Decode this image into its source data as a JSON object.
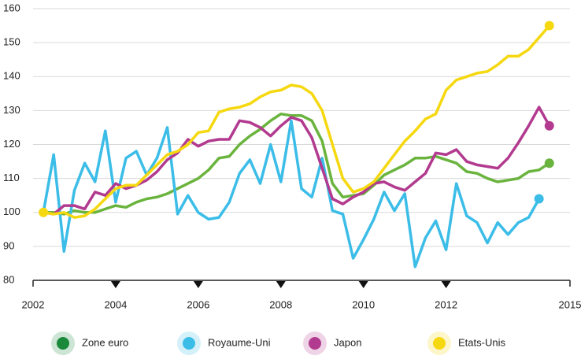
{
  "chart_data": {
    "type": "line",
    "x": [
      2002.25,
      2002.5,
      2002.75,
      2003,
      2003.25,
      2003.5,
      2003.75,
      2004,
      2004.25,
      2004.5,
      2004.75,
      2005,
      2005.25,
      2005.5,
      2005.75,
      2006,
      2006.25,
      2006.5,
      2006.75,
      2007,
      2007.25,
      2007.5,
      2007.75,
      2008,
      2008.25,
      2008.5,
      2008.75,
      2009,
      2009.25,
      2009.5,
      2009.75,
      2010,
      2010.25,
      2010.5,
      2010.75,
      2011,
      2011.25,
      2011.5,
      2011.75,
      2012,
      2012.25,
      2012.5,
      2012.75,
      2013,
      2013.25,
      2013.5,
      2013.75,
      2014,
      2014.25,
      2014.5
    ],
    "series": [
      {
        "name": "Zone euro",
        "color": "#6ab43e",
        "legend_color": "#1a8a3a",
        "values": [
          100,
          100,
          99.5,
          100.5,
          100,
          100,
          101,
          102,
          101.5,
          103,
          104,
          104.5,
          105.5,
          107,
          108.5,
          110,
          112.5,
          116,
          116.5,
          120,
          122.5,
          124.5,
          127,
          129,
          128.5,
          128.5,
          127,
          121,
          108.5,
          104.5,
          105,
          105.5,
          108,
          111,
          112.5,
          114,
          116,
          116,
          116.5,
          115.5,
          114.5,
          112,
          111.5,
          110,
          109,
          109.5,
          110,
          112,
          112.5,
          114.5
        ]
      },
      {
        "name": "Royaume-Uni",
        "color": "#3bbde8",
        "legend_color": "#3bbde8",
        "values": [
          100,
          117,
          88.5,
          106.5,
          114.5,
          109,
          124,
          103,
          116,
          118,
          111,
          116,
          125,
          99.5,
          105,
          100,
          98,
          98.5,
          103,
          111.5,
          115.5,
          108.5,
          120,
          109,
          127,
          107,
          104.5,
          116,
          100.5,
          99.5,
          86.5,
          92,
          98,
          106,
          100.5,
          105.5,
          84,
          92.5,
          97.5,
          89,
          108.5,
          99,
          97,
          91,
          97,
          93.5,
          97,
          98.5,
          104,
          null
        ]
      },
      {
        "name": "Japon",
        "color": "#b23a8f",
        "legend_color": "#b23a8f",
        "values": [
          100,
          99.5,
          102,
          102,
          101,
          106,
          105,
          108.5,
          107,
          108,
          109.5,
          112,
          115.5,
          117.5,
          121.5,
          119.5,
          121,
          121.5,
          121.5,
          127,
          126.5,
          125,
          122.5,
          125.5,
          128,
          127,
          122,
          113,
          104,
          102.5,
          104.5,
          106,
          108.5,
          109,
          107.5,
          106.5,
          109,
          111.5,
          117.5,
          117,
          118.5,
          115,
          114,
          113.5,
          113,
          116,
          120.5,
          125.5,
          131,
          125.5
        ]
      },
      {
        "name": "Etats-Unis",
        "color": "#f5d80f",
        "legend_color": "#f5d80f",
        "values": [
          100,
          99.5,
          100,
          98.5,
          99,
          101,
          104,
          107,
          108,
          108,
          111,
          114,
          117,
          118,
          120,
          123.5,
          124,
          129.5,
          130.5,
          131,
          132,
          134,
          135.5,
          136,
          137.5,
          137,
          135,
          130,
          120,
          110,
          106,
          107,
          109,
          113,
          117,
          121,
          124,
          127.5,
          129,
          136,
          139,
          140,
          141,
          141.5,
          143.5,
          146,
          146,
          148,
          151.5,
          155
        ]
      }
    ],
    "xlim": [
      2002,
      2015
    ],
    "xticks": [
      2002,
      2004,
      2006,
      2008,
      2010,
      2012,
      2015
    ],
    "ylim": [
      80,
      160
    ],
    "yticks": [
      80,
      90,
      100,
      110,
      120,
      130,
      140,
      150,
      160
    ],
    "grid": true,
    "legend": "bottom"
  }
}
